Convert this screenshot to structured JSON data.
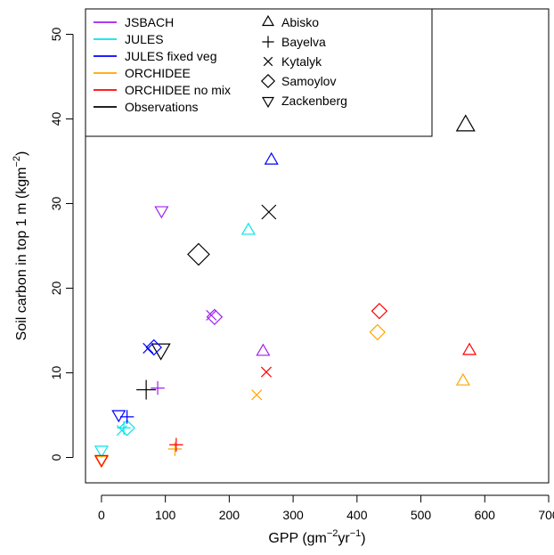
{
  "chart_data": {
    "type": "scatter",
    "title": "",
    "xlabel": {
      "base": "GPP (gm",
      "sup1": "−2",
      "mid": "yr",
      "sup2": "−1",
      "end": ")"
    },
    "ylabel": {
      "base": "Soil carbon in top 1 m (kgm",
      "sup": "−2",
      "end": ")"
    },
    "xlim": [
      -25,
      700
    ],
    "ylim": [
      -3,
      53
    ],
    "xticks": [
      0,
      100,
      200,
      300,
      400,
      500,
      600,
      700
    ],
    "yticks": [
      0,
      10,
      20,
      30,
      40,
      50
    ],
    "grid": false,
    "legend_placement": "top-left",
    "models": [
      {
        "name": "JSBACH",
        "color": "#a020f0"
      },
      {
        "name": "JULES",
        "color": "#00e5ee"
      },
      {
        "name": "JULES fixed veg",
        "color": "#0000ff"
      },
      {
        "name": "ORCHIDEE",
        "color": "#ffa500"
      },
      {
        "name": "ORCHIDEE no mix",
        "color": "#ff0000"
      },
      {
        "name": "Observations",
        "color": "#000000"
      }
    ],
    "sites": [
      {
        "name": "Abisko",
        "marker": "triangle-up"
      },
      {
        "name": "Bayelva",
        "marker": "plus"
      },
      {
        "name": "Kytalyk",
        "marker": "cross"
      },
      {
        "name": "Samoylov",
        "marker": "diamond"
      },
      {
        "name": "Zackenberg",
        "marker": "triangle-down"
      }
    ],
    "points": [
      {
        "model": "Observations",
        "site": "Abisko",
        "x": 570,
        "y": 39.2
      },
      {
        "model": "Observations",
        "site": "Bayelva",
        "x": 70,
        "y": 8.0
      },
      {
        "model": "Observations",
        "site": "Kytalyk",
        "x": 262,
        "y": 29.0
      },
      {
        "model": "Observations",
        "site": "Samoylov",
        "x": 152,
        "y": 24.0
      },
      {
        "model": "Observations",
        "site": "Zackenberg",
        "x": 93,
        "y": 12.8
      },
      {
        "model": "JSBACH",
        "site": "Abisko",
        "x": 253,
        "y": 12.5
      },
      {
        "model": "JSBACH",
        "site": "Bayelva",
        "x": 88,
        "y": 8.2
      },
      {
        "model": "JSBACH",
        "site": "Kytalyk",
        "x": 172,
        "y": 16.8
      },
      {
        "model": "JSBACH",
        "site": "Samoylov",
        "x": 177,
        "y": 16.6
      },
      {
        "model": "JSBACH",
        "site": "Zackenberg",
        "x": 94,
        "y": 29.2
      },
      {
        "model": "JULES",
        "site": "Abisko",
        "x": 230,
        "y": 26.8
      },
      {
        "model": "JULES",
        "site": "Bayelva",
        "x": 35,
        "y": 3.5
      },
      {
        "model": "JULES",
        "site": "Kytalyk",
        "x": 32,
        "y": 3.2
      },
      {
        "model": "JULES",
        "site": "Samoylov",
        "x": 40,
        "y": 3.5
      },
      {
        "model": "JULES",
        "site": "Zackenberg",
        "x": 0,
        "y": 0.9
      },
      {
        "model": "JULES fixed veg",
        "site": "Abisko",
        "x": 266,
        "y": 35.1
      },
      {
        "model": "JULES fixed veg",
        "site": "Bayelva",
        "x": 40,
        "y": 4.8
      },
      {
        "model": "JULES fixed veg",
        "site": "Kytalyk",
        "x": 73,
        "y": 12.9
      },
      {
        "model": "JULES fixed veg",
        "site": "Samoylov",
        "x": 82,
        "y": 13.0
      },
      {
        "model": "JULES fixed veg",
        "site": "Zackenberg",
        "x": 27,
        "y": 5.1
      },
      {
        "model": "ORCHIDEE",
        "site": "Abisko",
        "x": 566,
        "y": 9.0
      },
      {
        "model": "ORCHIDEE",
        "site": "Bayelva",
        "x": 115,
        "y": 1.0
      },
      {
        "model": "ORCHIDEE",
        "site": "Kytalyk",
        "x": 243,
        "y": 7.4
      },
      {
        "model": "ORCHIDEE",
        "site": "Samoylov",
        "x": 432,
        "y": 14.8
      },
      {
        "model": "ORCHIDEE",
        "site": "Zackenberg",
        "x": 0,
        "y": -0.3
      },
      {
        "model": "ORCHIDEE no mix",
        "site": "Abisko",
        "x": 576,
        "y": 12.6
      },
      {
        "model": "ORCHIDEE no mix",
        "site": "Bayelva",
        "x": 117,
        "y": 1.5
      },
      {
        "model": "ORCHIDEE no mix",
        "site": "Kytalyk",
        "x": 258,
        "y": 10.1
      },
      {
        "model": "ORCHIDEE no mix",
        "site": "Samoylov",
        "x": 435,
        "y": 17.3
      },
      {
        "model": "ORCHIDEE no mix",
        "site": "Zackenberg",
        "x": 0,
        "y": -0.2
      }
    ]
  }
}
